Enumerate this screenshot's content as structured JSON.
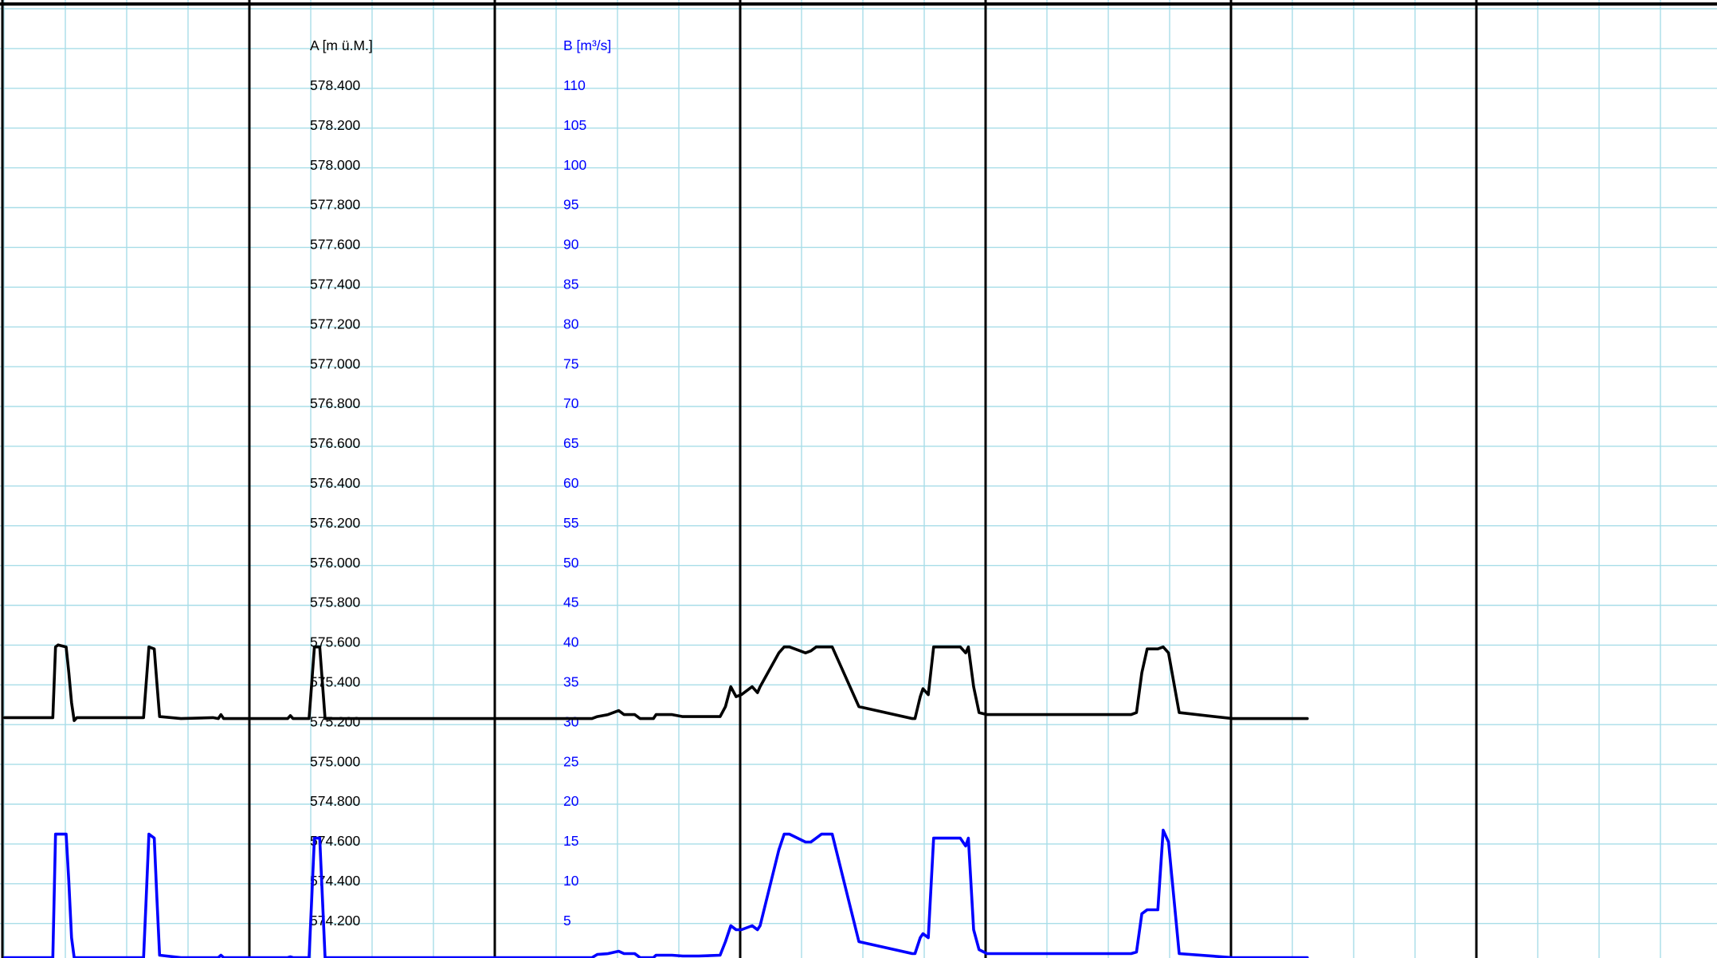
{
  "chart_data": {
    "type": "line",
    "colors": {
      "grid_minor": "#a8dde8",
      "grid_major": "#000000",
      "series_a": "#000000",
      "series_b": "#0000ff",
      "background": "#ffffff"
    },
    "grid": true,
    "x_axis_labels_shown": false,
    "y_axes": [
      {
        "id": "a",
        "label": "A [m ü.M.]",
        "color": "#000000",
        "range": [
          574.0,
          578.6
        ],
        "ticks": [
          "578.400",
          "578.200",
          "578.000",
          "577.800",
          "577.600",
          "577.400",
          "577.200",
          "577.000",
          "576.800",
          "576.600",
          "576.400",
          "576.200",
          "576.000",
          "575.800",
          "575.600",
          "575.400",
          "575.200",
          "575.000",
          "574.800",
          "574.600",
          "574.400",
          "574.200"
        ]
      },
      {
        "id": "b",
        "label": "B [m³/s]",
        "color": "#0000ff",
        "range": [
          0,
          115
        ],
        "ticks": [
          "110",
          "105",
          "100",
          "95",
          "90",
          "85",
          "80",
          "75",
          "70",
          "65",
          "60",
          "55",
          "50",
          "45",
          "40",
          "35",
          "30",
          "25",
          "20",
          "15",
          "10",
          "5"
        ]
      }
    ],
    "x_range": [
      0,
      28
    ],
    "series": [
      {
        "axis": "a",
        "color": "#000000",
        "x": [
          0.0,
          0.9,
          0.95,
          1.0,
          1.15,
          1.2,
          1.25,
          1.3,
          1.35,
          1.5,
          2.6,
          2.65,
          2.7,
          2.8,
          2.85,
          2.9,
          3.3,
          3.9,
          4.0,
          4.05,
          4.1,
          5.3,
          5.35,
          5.4,
          5.7,
          5.75,
          5.8,
          5.85,
          5.9,
          6.0,
          7.8,
          8.1,
          8.2,
          8.3,
          8.45,
          8.5,
          8.9,
          9.1,
          9.25,
          9.3,
          9.35,
          9.5,
          9.6,
          9.7,
          9.8,
          10.0,
          10.1,
          10.2,
          10.4,
          10.5,
          10.6,
          10.8,
          10.9,
          11.0,
          11.1,
          11.3,
          11.5,
          11.6,
          11.7,
          11.8,
          11.9,
          12.0,
          12.15,
          12.2,
          12.3,
          12.5,
          12.7,
          13.0,
          13.4,
          13.5,
          13.6,
          13.7,
          13.8,
          14.0,
          14.1,
          14.15,
          14.5,
          14.6,
          14.7,
          15.0,
          15.1,
          15.2,
          15.3,
          15.5,
          16.0,
          17.0,
          17.05,
          17.15,
          17.2,
          17.3,
          17.4,
          17.6,
          17.9,
          18.0,
          18.05,
          18.15,
          18.25,
          18.4,
          19.0,
          21.0,
          21.1,
          21.2,
          21.3,
          21.4,
          21.5,
          21.6,
          21.7,
          21.8,
          22.0,
          23.0,
          24.0,
          24.4
        ],
        "y": [
          575.225,
          575.225,
          575.58,
          575.59,
          575.58,
          575.45,
          575.3,
          575.21,
          575.225,
          575.225,
          575.225,
          575.4,
          575.58,
          575.57,
          575.4,
          575.23,
          575.22,
          575.225,
          575.22,
          575.24,
          575.22,
          575.22,
          575.235,
          575.22,
          575.22,
          575.4,
          575.58,
          575.58,
          575.58,
          575.22,
          575.22,
          575.22,
          575.22,
          575.22,
          575.22,
          575.22,
          575.22,
          575.22,
          575.22,
          575.22,
          575.22,
          575.22,
          575.22,
          575.22,
          575.22,
          575.22,
          575.22,
          575.22,
          575.22,
          575.22,
          575.22,
          575.22,
          575.22,
          575.22,
          575.23,
          575.24,
          575.26,
          575.24,
          575.24,
          575.24,
          575.22,
          575.22,
          575.22,
          575.24,
          575.24,
          575.24,
          575.23,
          575.23,
          575.23,
          575.28,
          575.38,
          575.33,
          575.34,
          575.38,
          575.35,
          575.38,
          575.55,
          575.58,
          575.58,
          575.55,
          575.56,
          575.58,
          575.58,
          575.58,
          575.28,
          575.22,
          575.22,
          575.33,
          575.37,
          575.34,
          575.58,
          575.58,
          575.58,
          575.55,
          575.58,
          575.38,
          575.25,
          575.24,
          575.24,
          575.24,
          575.24,
          575.25,
          575.45,
          575.57,
          575.57,
          575.57,
          575.58,
          575.55,
          575.25,
          575.22,
          575.22,
          575.22
        ]
      },
      {
        "axis": "b",
        "color": "#0000ff",
        "x": [
          0.0,
          0.9,
          0.95,
          1.0,
          1.15,
          1.2,
          1.25,
          1.3,
          1.35,
          1.5,
          2.6,
          2.65,
          2.7,
          2.8,
          2.85,
          2.9,
          3.3,
          3.9,
          4.0,
          4.05,
          4.1,
          5.3,
          5.35,
          5.4,
          5.7,
          5.75,
          5.8,
          5.85,
          5.9,
          6.0,
          7.8,
          8.1,
          8.2,
          8.3,
          8.45,
          8.5,
          8.9,
          9.1,
          9.25,
          9.3,
          9.35,
          9.5,
          9.6,
          9.7,
          9.8,
          10.0,
          10.1,
          10.2,
          10.4,
          10.5,
          10.6,
          10.8,
          10.9,
          11.0,
          11.1,
          11.3,
          11.5,
          11.6,
          11.7,
          11.8,
          11.9,
          12.0,
          12.15,
          12.2,
          12.3,
          12.5,
          12.7,
          13.0,
          13.4,
          13.5,
          13.6,
          13.7,
          13.8,
          14.0,
          14.1,
          14.15,
          14.5,
          14.6,
          14.7,
          15.0,
          15.1,
          15.2,
          15.3,
          15.5,
          16.0,
          17.0,
          17.05,
          17.15,
          17.2,
          17.3,
          17.4,
          17.6,
          17.9,
          18.0,
          18.05,
          18.15,
          18.25,
          18.4,
          19.0,
          21.0,
          21.1,
          21.2,
          21.3,
          21.4,
          21.5,
          21.6,
          21.7,
          21.8,
          22.0,
          23.0,
          24.0,
          24.4
        ],
        "y": [
          0.5,
          0.5,
          16.0,
          16.0,
          16.0,
          10.0,
          3.0,
          0.5,
          0.5,
          0.5,
          0.5,
          8.0,
          16.0,
          15.5,
          8.0,
          0.8,
          0.5,
          0.5,
          0.5,
          0.8,
          0.5,
          0.5,
          0.6,
          0.5,
          0.5,
          8.0,
          15.5,
          15.5,
          15.5,
          0.5,
          0.5,
          0.5,
          0.5,
          0.5,
          0.5,
          0.5,
          0.5,
          0.5,
          0.5,
          0.5,
          0.5,
          0.5,
          0.5,
          0.5,
          0.5,
          0.5,
          0.5,
          0.5,
          0.5,
          0.5,
          0.5,
          0.5,
          0.5,
          0.5,
          0.9,
          1.0,
          1.3,
          1.0,
          1.0,
          1.0,
          0.5,
          0.5,
          0.5,
          0.8,
          0.8,
          0.8,
          0.7,
          0.7,
          0.8,
          2.5,
          4.5,
          4.0,
          4.0,
          4.5,
          4.0,
          4.5,
          14.0,
          16.0,
          16.0,
          15.0,
          15.0,
          15.5,
          16.0,
          16.0,
          2.5,
          1.0,
          1.0,
          3.0,
          3.5,
          3.0,
          15.5,
          15.5,
          15.5,
          14.5,
          15.5,
          4.0,
          1.5,
          1.0,
          1.0,
          1.0,
          1.0,
          1.2,
          6.0,
          6.5,
          6.5,
          6.5,
          16.5,
          15.0,
          1.0,
          0.5,
          0.5,
          0.5
        ]
      }
    ]
  }
}
